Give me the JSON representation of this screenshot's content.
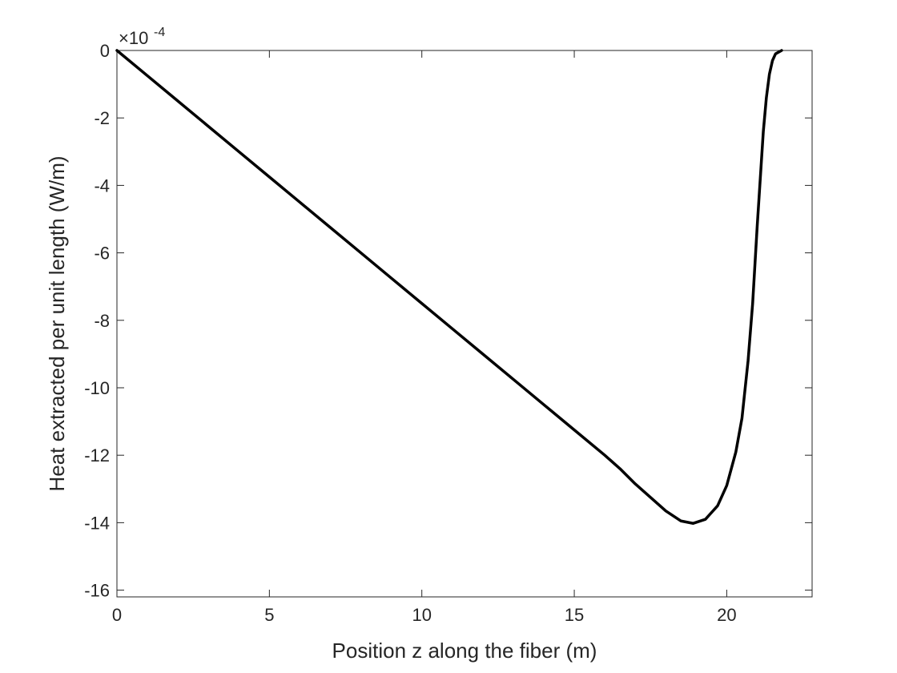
{
  "chart_data": {
    "type": "line",
    "title": "",
    "xlabel": "Position z along the fiber (m)",
    "ylabel": "Heat extracted per unit length (W/m)",
    "y_exponent": {
      "base": "×10",
      "power": "-4"
    },
    "xlim": [
      0,
      22.8
    ],
    "ylim": [
      -16.2,
      0
    ],
    "xticks": [
      0,
      5,
      10,
      15,
      20
    ],
    "xtick_labels": [
      "0",
      "5",
      "10",
      "15",
      "20"
    ],
    "yticks": [
      0,
      -2,
      -4,
      -6,
      -8,
      -10,
      -12,
      -14,
      -16
    ],
    "ytick_labels": [
      "0",
      "-2",
      "-4",
      "-6",
      "-8",
      "-10",
      "-12",
      "-14",
      "-16"
    ],
    "grid": false,
    "series": [
      {
        "color": "#000000",
        "x": [
          0,
          1,
          2,
          3,
          4,
          5,
          6,
          7,
          8,
          9,
          10,
          11,
          12,
          13,
          14,
          15,
          16,
          16.5,
          17,
          17.5,
          18,
          18.5,
          18.9,
          19.3,
          19.7,
          20.0,
          20.3,
          20.5,
          20.7,
          20.85,
          21.0,
          21.1,
          21.2,
          21.3,
          21.4,
          21.5,
          21.6,
          21.8
        ],
        "y": [
          0,
          -0.75,
          -1.5,
          -2.25,
          -3.0,
          -3.75,
          -4.5,
          -5.25,
          -6.0,
          -6.75,
          -7.5,
          -8.25,
          -9.0,
          -9.75,
          -10.5,
          -11.25,
          -12.0,
          -12.4,
          -12.85,
          -13.25,
          -13.65,
          -13.95,
          -14.02,
          -13.9,
          -13.5,
          -12.9,
          -11.9,
          -10.9,
          -9.2,
          -7.5,
          -5.2,
          -3.8,
          -2.4,
          -1.4,
          -0.7,
          -0.3,
          -0.1,
          0
        ]
      }
    ]
  }
}
